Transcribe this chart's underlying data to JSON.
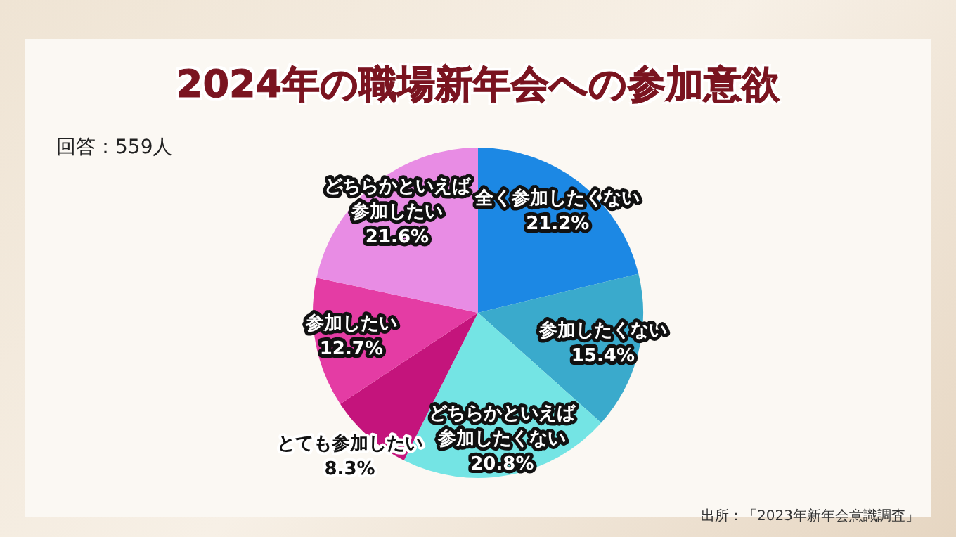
{
  "chart_data": {
    "type": "pie",
    "title": "2024年の職場新年会への参加意欲",
    "subtitle": "回答：559人",
    "categories": [
      "全く参加したくない",
      "参加したくない",
      "どちらかといえば参加したくない",
      "とても参加したい",
      "参加したい",
      "どちらかといえば参加したい"
    ],
    "values": [
      21.2,
      15.4,
      20.8,
      8.3,
      12.7,
      21.6
    ],
    "colors": [
      "#1c88e4",
      "#3aaacc",
      "#74e4e4",
      "#c4147c",
      "#e43ca4",
      "#e88ce4"
    ],
    "value_labels": [
      "21.2%",
      "15.4%",
      "20.8%",
      "8.3%",
      "12.7%",
      "21.6%"
    ],
    "annotations": [
      "出所：「2023年新年会意識調査」"
    ]
  }
}
